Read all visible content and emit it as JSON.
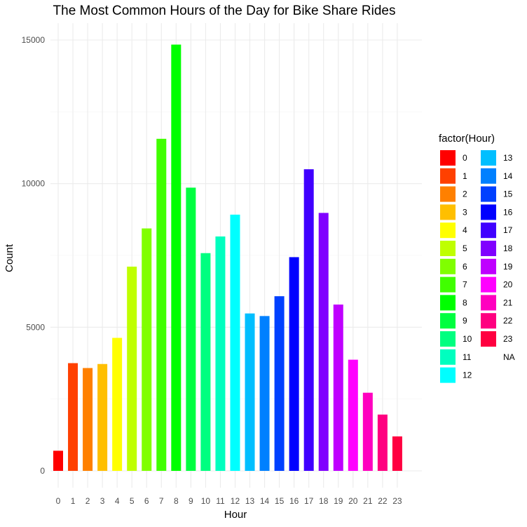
{
  "chart_data": {
    "type": "bar",
    "title": "The Most Common Hours of the Day for Bike Share Rides",
    "xlabel": "Hour",
    "ylabel": "Count",
    "ylim": [
      0,
      15000
    ],
    "yticks": [
      "0",
      "5000",
      "10000",
      "15000"
    ],
    "grid": true,
    "legend": {
      "title": "factor(Hour)",
      "position": "right"
    },
    "categories": [
      "0",
      "1",
      "2",
      "3",
      "4",
      "5",
      "6",
      "7",
      "8",
      "9",
      "10",
      "11",
      "12",
      "13",
      "14",
      "15",
      "16",
      "17",
      "18",
      "19",
      "20",
      "21",
      "22",
      "23"
    ],
    "values": [
      700,
      3750,
      3580,
      3720,
      4630,
      7110,
      8440,
      11560,
      14840,
      9860,
      7580,
      8160,
      8920,
      5480,
      5390,
      6080,
      7440,
      10500,
      8980,
      5790,
      3870,
      2720,
      1960,
      1200
    ],
    "colors": [
      "#FF0000",
      "#FF4000",
      "#FF8000",
      "#FFBF00",
      "#FFFF00",
      "#BFFF00",
      "#80FF00",
      "#40FF00",
      "#00FF00",
      "#00FF40",
      "#00FF80",
      "#00FFBF",
      "#00FFFF",
      "#00BFFF",
      "#0080FF",
      "#0040FF",
      "#0000FF",
      "#4000FF",
      "#8000FF",
      "#BF00FF",
      "#FF00FF",
      "#FF00BF",
      "#FF0080",
      "#FF0040"
    ],
    "legend_entries": [
      "0",
      "1",
      "2",
      "3",
      "4",
      "5",
      "6",
      "7",
      "8",
      "9",
      "10",
      "11",
      "12",
      "13",
      "14",
      "15",
      "16",
      "17",
      "18",
      "19",
      "20",
      "21",
      "22",
      "23",
      "NA"
    ]
  }
}
